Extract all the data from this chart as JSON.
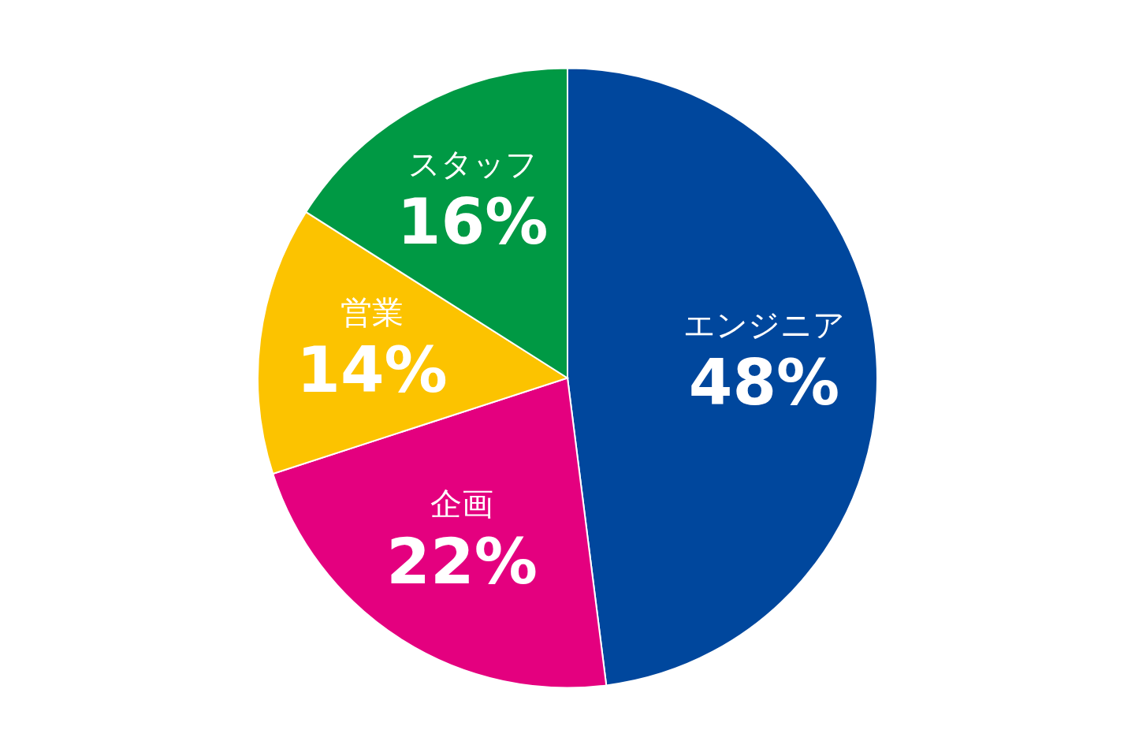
{
  "chart_data": {
    "type": "pie",
    "categories": [
      "エンジニア",
      "企画",
      "営業",
      "スタッフ"
    ],
    "values": [
      48,
      22,
      14,
      16
    ],
    "value_labels": [
      "48%",
      "22%",
      "14%",
      "16%"
    ],
    "colors": [
      "#00479d",
      "#e4007f",
      "#fcc300",
      "#009944"
    ],
    "legend": false
  }
}
